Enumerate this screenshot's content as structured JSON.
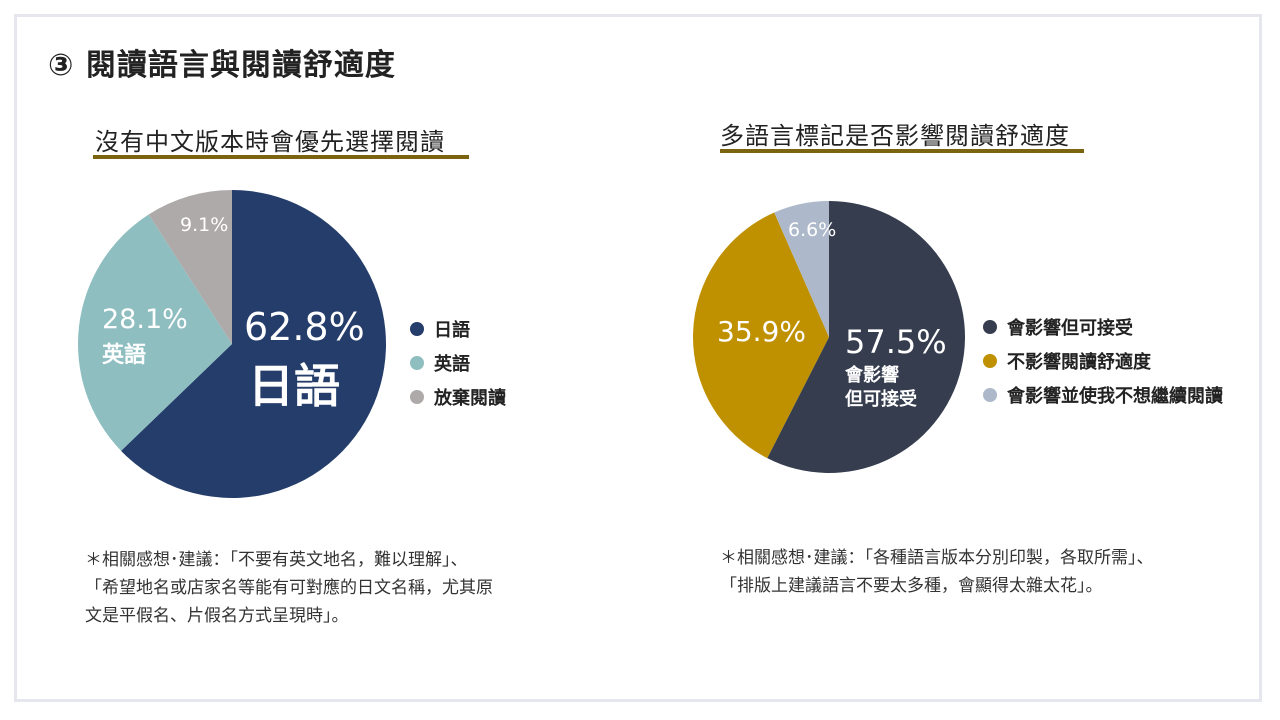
{
  "page": {
    "title": "③ 閱讀語言與閱讀舒適度"
  },
  "chart_data": [
    {
      "type": "pie",
      "title": "沒有中文版本時會優先選擇閱讀",
      "categories": [
        "日語",
        "英語",
        "放棄閱讀"
      ],
      "values": [
        62.8,
        28.1,
        9.1
      ],
      "value_labels": [
        "62.8%",
        "28.1%",
        "9.1%"
      ],
      "slice_texts": [
        "日語",
        "英語",
        ""
      ],
      "colors": [
        "#253d6b",
        "#8fbec1",
        "#aeaaa9"
      ],
      "legend": [
        "日語",
        "英語",
        "放棄閱讀"
      ],
      "legend_position": "right",
      "note": [
        "＊相關感想･建議：「不要有英文地名，難以理解」、",
        "「希望地名或店家名等能有可對應的日文名稱，尤其原",
        "文是平假名、片假名方式呈現時」。"
      ]
    },
    {
      "type": "pie",
      "title": "多語言標記是否影響閱讀舒適度",
      "categories": [
        "會影響但可接受",
        "不影響閱讀舒適度",
        "會影響並使我不想繼續閱讀"
      ],
      "values": [
        57.5,
        35.9,
        6.6
      ],
      "value_labels": [
        "57.5%",
        "35.9%",
        "6.6%"
      ],
      "slice_texts": [
        "會影響\n但可接受",
        "",
        ""
      ],
      "colors": [
        "#353d4f",
        "#bf9000",
        "#adb9ca"
      ],
      "legend": [
        "會影響但可接受",
        "不影響閱讀舒適度",
        "會影響並使我不想繼續閱讀"
      ],
      "legend_position": "right",
      "note": [
        "＊相關感想･建議：「各種語言版本分別印製，各取所需」、",
        "「排版上建議語言不要太多種，會顯得太雜太花」。"
      ]
    }
  ]
}
